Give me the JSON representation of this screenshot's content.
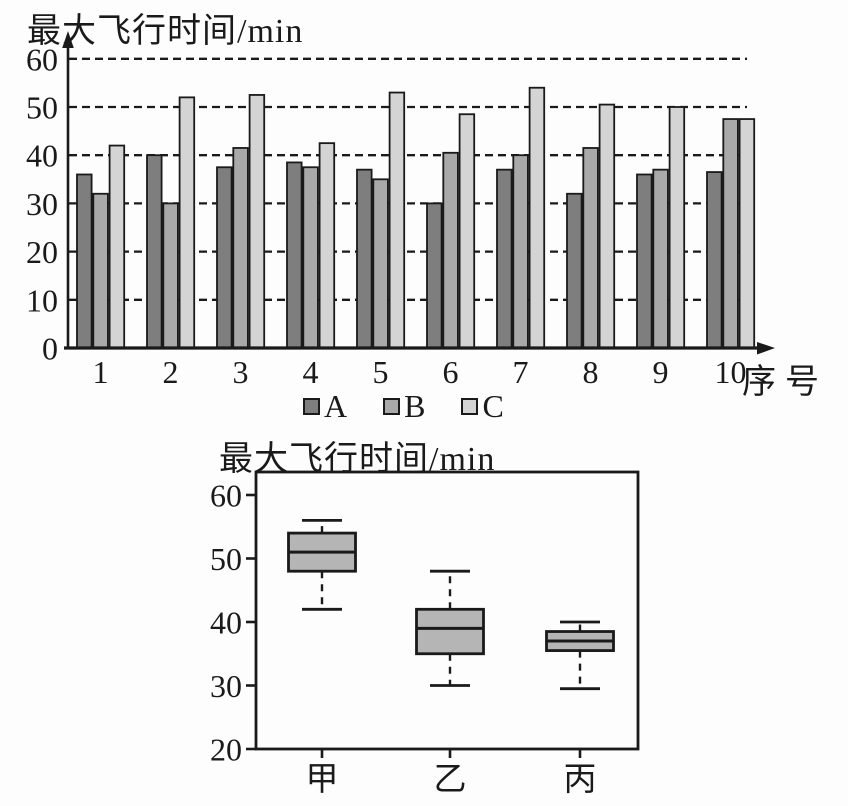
{
  "page": {
    "background": "#fdfdfd",
    "ink_color": "#1a1a1a"
  },
  "chart_data": [
    {
      "type": "bar",
      "title": "最大飞行时间/min",
      "xlabel": "序号",
      "ylabel": "",
      "categories": [
        "1",
        "2",
        "3",
        "4",
        "5",
        "6",
        "7",
        "8",
        "9",
        "10"
      ],
      "series": [
        {
          "name": "A",
          "color": "#7e7e7e",
          "values": [
            36,
            40,
            37.5,
            38.5,
            37,
            30,
            37,
            32,
            36,
            36.5
          ]
        },
        {
          "name": "B",
          "color": "#a9a9a9",
          "values": [
            32,
            30,
            41.5,
            37.5,
            35,
            40.5,
            40,
            41.5,
            37,
            47.5
          ]
        },
        {
          "name": "C",
          "color": "#d4d4d4",
          "values": [
            42,
            52,
            52.5,
            42.5,
            53,
            48.5,
            54,
            50.5,
            50,
            47.5
          ]
        }
      ],
      "ylim": [
        0,
        60
      ],
      "yticks": [
        0,
        10,
        20,
        30,
        40,
        50,
        60
      ],
      "grid": "horizontal-dashed",
      "legend_position": "bottom",
      "legend": [
        "A",
        "B",
        "C"
      ]
    },
    {
      "type": "boxplot",
      "title": "最大飞行时间/min",
      "xlabel": "",
      "categories": [
        "甲",
        "乙",
        "丙"
      ],
      "yticks": [
        20,
        30,
        40,
        50,
        60
      ],
      "ylim": [
        20,
        62
      ],
      "grid": "none",
      "box_fill": "#b5b5b5",
      "boxes": [
        {
          "label": "甲",
          "min": 42,
          "q1": 48,
          "median": 51,
          "q3": 54,
          "max": 56
        },
        {
          "label": "乙",
          "min": 30,
          "q1": 35,
          "median": 39,
          "q3": 42,
          "max": 48
        },
        {
          "label": "丙",
          "min": 29.5,
          "q1": 35.5,
          "median": 37,
          "q3": 38.5,
          "max": 40
        }
      ]
    }
  ]
}
